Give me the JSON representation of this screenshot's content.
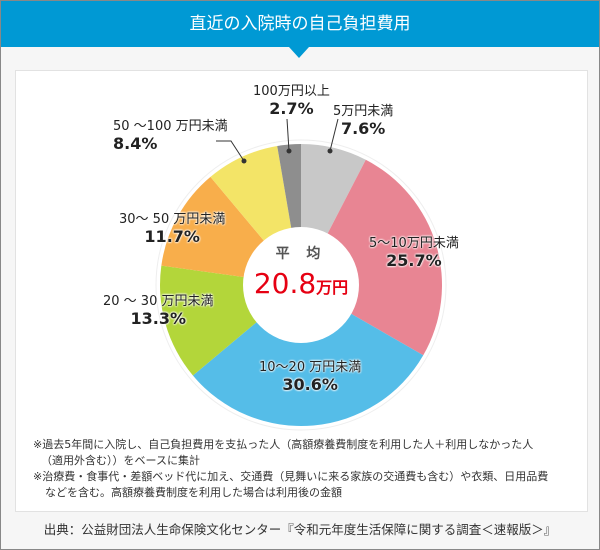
{
  "title": "直近の入院時の自己負担費用",
  "average": {
    "label": "平 均",
    "value": "20.8",
    "unit": "万円"
  },
  "notes": [
    "※過去5年間に入院し、自己負担費用を支払った人（高額療養費制度を利用した人＋利用しなかった人",
    "（適用外含む））をベースに集計",
    "※治療費・食事代・差額ベッド代に加え、交通費（見舞いに来る家族の交通費も含む）や衣類、日用品費",
    "などを含む。高額療養費制度を利用した場合は利用後の金額"
  ],
  "source": "出典：公益財団法人生命保険文化センター『令和元年度生活保障に関する調査＜速報版＞』",
  "chart_data": {
    "type": "pie",
    "donut": true,
    "title": "直近の入院時の自己負担費用",
    "categories": [
      "5万円未満",
      "5～10万円未満",
      "10～20 万円未満",
      "20 ～ 30 万円未満",
      "30～ 50 万円未満",
      "50 ～100 万円未満",
      "100万円以上"
    ],
    "labels_pct": [
      "7.6%",
      "25.7%",
      "30.6%",
      "13.3%",
      "11.7%",
      "8.4%",
      "2.7%"
    ],
    "values": [
      7.6,
      25.7,
      30.6,
      13.3,
      11.7,
      8.4,
      2.7
    ],
    "colors": [
      "#c8c8c8",
      "#e88593",
      "#55bde8",
      "#b3d63a",
      "#f8ae4b",
      "#f3e467",
      "#8e8e8e"
    ]
  }
}
